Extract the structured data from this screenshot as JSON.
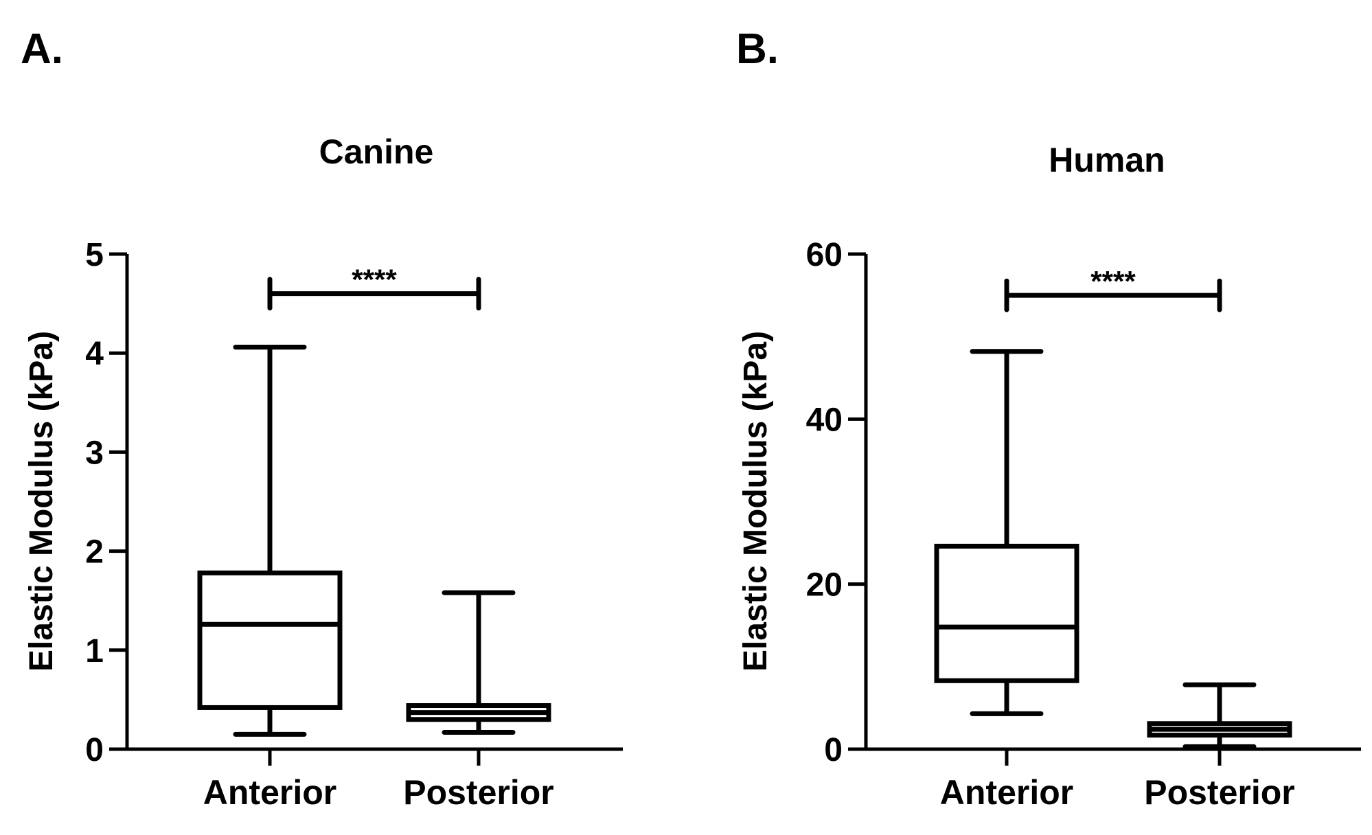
{
  "chart_data": [
    {
      "type": "box",
      "panel_label": "A.",
      "title": "Canine",
      "xlabel": "",
      "ylabel": "Elastic Modulus (kPa)",
      "ylim": [
        0,
        5
      ],
      "yticks": [
        0,
        1,
        2,
        3,
        4,
        5
      ],
      "ytick_labels": [
        "0",
        "1",
        "2",
        "3",
        "4",
        "5"
      ],
      "categories": [
        "Anterior",
        "Posterior"
      ],
      "boxes": [
        {
          "name": "Anterior",
          "min": 0.15,
          "q1": 0.42,
          "median": 1.26,
          "q3": 1.78,
          "max": 4.06
        },
        {
          "name": "Posterior",
          "min": 0.17,
          "q1": 0.3,
          "median": 0.37,
          "q3": 0.44,
          "max": 1.58
        }
      ],
      "significance": {
        "from": "Anterior",
        "to": "Posterior",
        "label": "****",
        "y": 4.6
      },
      "grid": false
    },
    {
      "type": "box",
      "panel_label": "B.",
      "title": "Human",
      "xlabel": "",
      "ylabel": "Elastic Modulus (kPa)",
      "ylim": [
        0,
        60
      ],
      "yticks": [
        0,
        20,
        40,
        60
      ],
      "ytick_labels": [
        "0",
        "20",
        "40",
        "60"
      ],
      "categories": [
        "Anterior",
        "Posterior"
      ],
      "boxes": [
        {
          "name": "Anterior",
          "min": 4.3,
          "q1": 8.3,
          "median": 14.8,
          "q3": 24.6,
          "max": 48.2
        },
        {
          "name": "Posterior",
          "min": 0.3,
          "q1": 1.7,
          "median": 2.4,
          "q3": 3.1,
          "max": 7.8
        }
      ],
      "significance": {
        "from": "Anterior",
        "to": "Posterior",
        "label": "****",
        "y": 55
      },
      "grid": false
    }
  ]
}
